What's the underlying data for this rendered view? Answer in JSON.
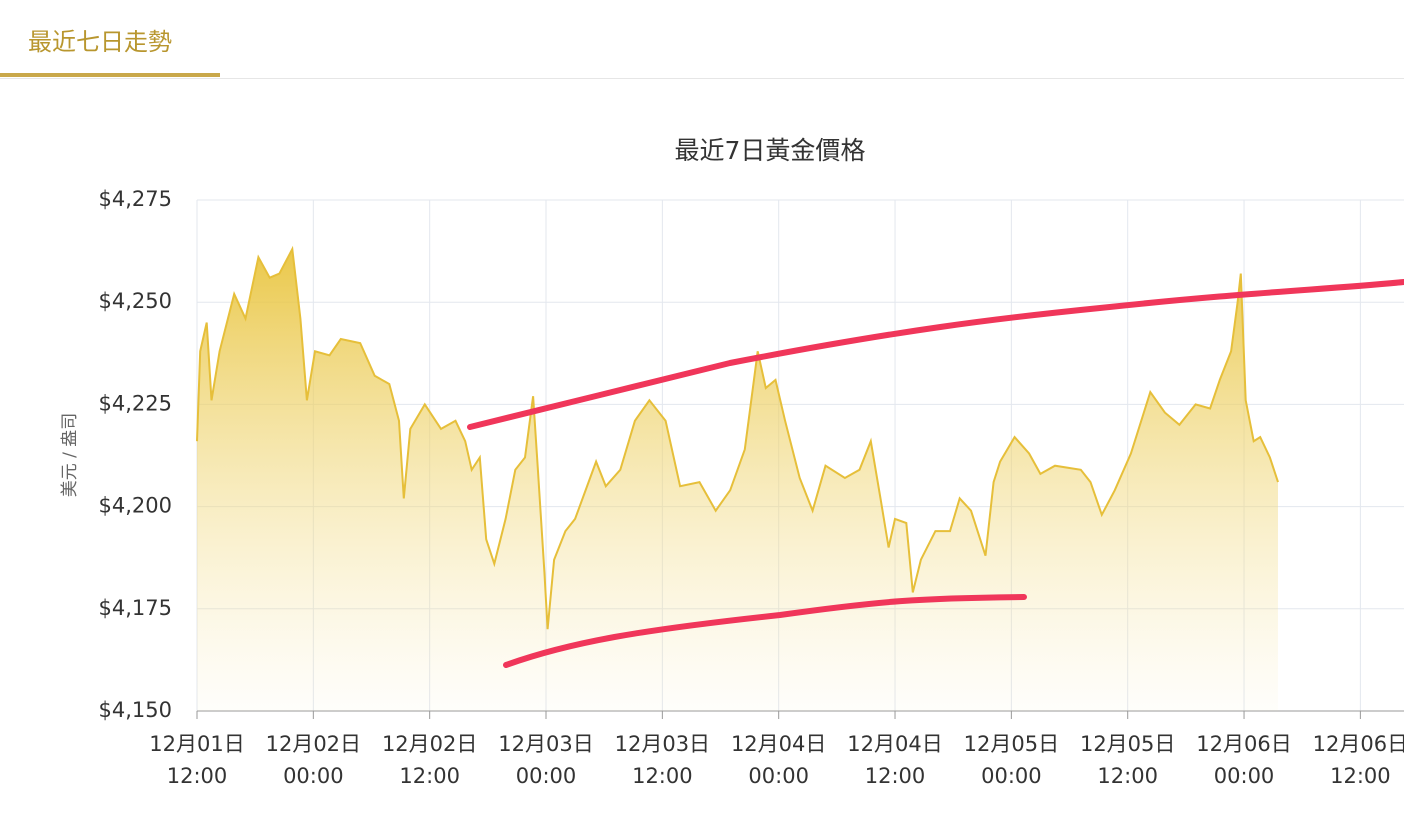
{
  "tab": "最近七日走勢",
  "chart_data": {
    "type": "area",
    "title": "最近7日黃金價格",
    "y_label": "美元 / 盎司",
    "color": "#e6bf3a",
    "grid": true,
    "x": [
      "12月01日 12:00",
      "12月01日 12:20",
      "12月01日 13:00",
      "12月01日 13:30",
      "12月01日 14:20",
      "12月01日 15:50",
      "12月01日 17:00",
      "12月01日 18:20",
      "12月01日 19:30",
      "12月01日 20:30",
      "12月01日 21:50",
      "12月01日 22:40",
      "12月01日 23:20",
      "12月02日 00:10",
      "12月02日 01:40",
      "12月02日 02:50",
      "12月02日 04:50",
      "12月02日 06:20",
      "12月02日 07:50",
      "12月02日 08:50",
      "12月02日 09:20",
      "12月02日 10:00",
      "12月02日 11:30",
      "12月02日 13:10",
      "12月02日 14:40",
      "12月02日 15:40",
      "12月02日 16:20",
      "12月02日 17:10",
      "12月02日 17:50",
      "12月02日 18:40",
      "12月02日 19:50",
      "12月02日 20:50",
      "12月02日 21:50",
      "12月02日 22:40",
      "12月02日 23:10",
      "12月02日 23:50",
      "12月03日 00:10",
      "12月03日 00:50",
      "12月03日 02:00",
      "12月03日 03:00",
      "12月03日 05:10",
      "12月03日 06:10",
      "12月03日 07:40",
      "12月03日 09:10",
      "12月03日 10:40",
      "12月03日 12:20",
      "12月03日 13:50",
      "12月03日 15:50",
      "12月03日 17:30",
      "12月03日 19:00",
      "12月03日 20:30",
      "12月03日 21:50",
      "12月03日 22:40",
      "12月03日 23:40",
      "12月04日 00:40",
      "12月04日 02:10",
      "12月04日 03:30",
      "12月04日 04:50",
      "12月04日 06:50",
      "12月04日 08:20",
      "12月04日 09:30",
      "12月04日 10:30",
      "12月04日 11:20",
      "12月04日 12:00",
      "12月04日 13:10",
      "12月04日 13:50",
      "12月04日 14:40",
      "12月04日 16:10",
      "12月04日 17:40",
      "12月04日 18:40",
      "12月04日 19:50",
      "12月04日 21:20",
      "12月04日 22:10",
      "12月04日 22:50",
      "12月05日 00:20",
      "12月05日 01:50",
      "12月05日 03:00",
      "12月05日 04:30",
      "12月05日 07:10",
      "12月05日 08:10",
      "12月05日 09:20",
      "12月05日 10:40",
      "12月05日 12:20",
      "12月05日 14:20",
      "12月05日 15:50",
      "12月05日 17:20",
      "12月05日 19:00",
      "12月05日 20:30",
      "12月05日 21:30",
      "12月05日 22:40",
      "12月05日 23:20",
      "12月05日 23:40",
      "12月06日 00:10",
      "12月06日 01:00",
      "12月06日 01:40",
      "12月06日 02:40",
      "12月06日 03:30"
    ],
    "values": [
      4216,
      4238,
      4245,
      4226,
      4238,
      4252,
      4246,
      4261,
      4256,
      4257,
      4263,
      4246,
      4226,
      4238,
      4237,
      4241,
      4240,
      4232,
      4230,
      4221,
      4202,
      4219,
      4225,
      4219,
      4221,
      4216,
      4209,
      4212,
      4192,
      4186,
      4197,
      4209,
      4212,
      4227,
      4209,
      4184,
      4170,
      4187,
      4194,
      4197,
      4211,
      4205,
      4209,
      4221,
      4226,
      4221,
      4205,
      4206,
      4199,
      4204,
      4214,
      4238,
      4229,
      4231,
      4221,
      4207,
      4199,
      4210,
      4207,
      4209,
      4216,
      4202,
      4190,
      4197,
      4196,
      4179,
      4187,
      4194,
      4194,
      4202,
      4199,
      4188,
      4206,
      4211,
      4217,
      4213,
      4208,
      4210,
      4209,
      4206,
      4198,
      4204,
      4213,
      4228,
      4223,
      4220,
      4225,
      4224,
      4231,
      4238,
      4250,
      4257,
      4226,
      4216,
      4217,
      4212,
      4206
    ],
    "xlim": [
      "12月01日 12:00",
      "12月06日 16:30"
    ],
    "xticks": [
      "12月01日\n12:00",
      "12月02日\n00:00",
      "12月02日\n12:00",
      "12月03日\n00:00",
      "12月03日\n12:00",
      "12月04日\n00:00",
      "12月04日\n12:00",
      "12月05日\n00:00",
      "12月05日\n12:00",
      "12月06日\n00:00",
      "12月06日\n12:00"
    ],
    "ylim": [
      4150,
      4275
    ],
    "yticks": [
      {
        "value": 4150,
        "label": "$4,150"
      },
      {
        "value": 4175,
        "label": "$4,175"
      },
      {
        "value": 4200,
        "label": "$4,200"
      },
      {
        "value": 4225,
        "label": "$4,225"
      },
      {
        "value": 4250,
        "label": "$4,250"
      },
      {
        "value": 4275,
        "label": "$4,275"
      }
    ]
  }
}
